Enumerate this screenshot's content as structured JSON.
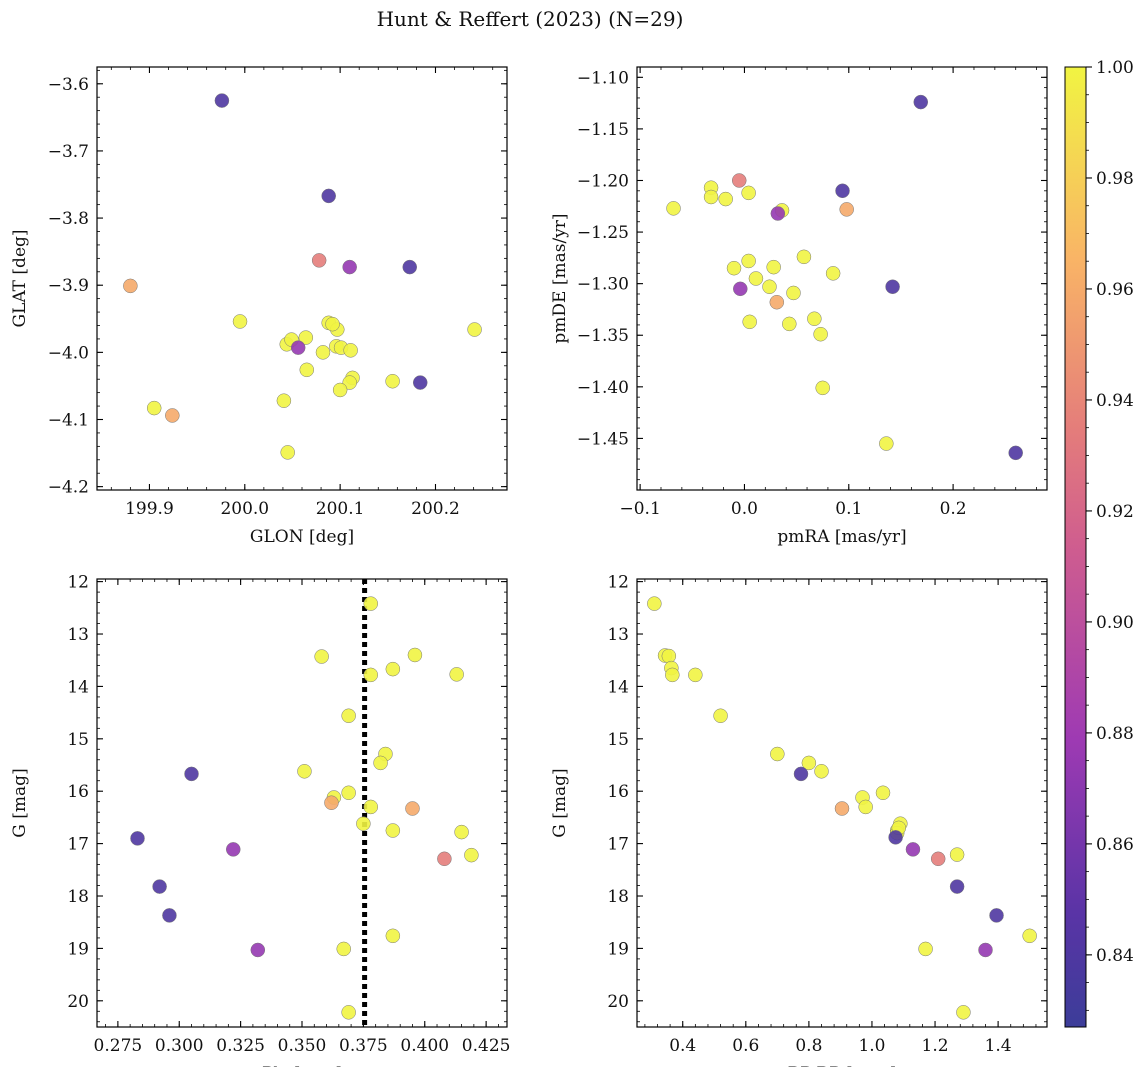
{
  "title": "Hunt & Reffert (2023) (N=29)",
  "colorbar": {
    "min": 0.827,
    "max": 1.0,
    "ticks": [
      0.84,
      0.86,
      0.88,
      0.9,
      0.92,
      0.94,
      0.96,
      0.98,
      1.0
    ],
    "tick_labels": [
      "0.84",
      "0.86",
      "0.88",
      "0.90",
      "0.92",
      "0.94",
      "0.96",
      "0.98",
      "1.00"
    ],
    "colormap": "plasma"
  },
  "chart_data": [
    {
      "type": "scatter",
      "id": "glon-glat",
      "xlabel": "GLON [deg]",
      "ylabel": "GLAT [deg]",
      "xlim": [
        199.845,
        200.275
      ],
      "ylim": [
        -4.205,
        -3.575
      ],
      "invert_y": false,
      "xticks": [
        199.9,
        200.0,
        200.1,
        200.2
      ],
      "xtick_labels": [
        "199.9",
        "200.0",
        "200.1",
        "200.2"
      ],
      "yticks": [
        -4.2,
        -4.1,
        -4.0,
        -3.9,
        -3.8,
        -3.7,
        -3.6
      ],
      "ytick_labels": [
        "−4.2",
        "−4.1",
        "−4.0",
        "−3.9",
        "−3.8",
        "−3.7",
        "−3.6"
      ],
      "x": [
        199.976,
        200.088,
        200.078,
        200.11,
        200.173,
        199.88,
        199.995,
        200.088,
        200.097,
        200.044,
        200.049,
        200.056,
        200.064,
        200.096,
        200.101,
        200.111,
        200.082,
        200.065,
        200.113,
        200.11,
        200.155,
        200.1,
        200.184,
        200.241,
        199.905,
        199.924,
        200.041,
        200.045,
        200.092
      ],
      "y": [
        -3.625,
        -3.767,
        -3.863,
        -3.873,
        -3.873,
        -3.901,
        -3.954,
        -3.956,
        -3.966,
        -3.988,
        -3.981,
        -3.993,
        -3.978,
        -3.991,
        -3.993,
        -3.997,
        -4.0,
        -4.026,
        -4.038,
        -4.045,
        -4.043,
        -4.056,
        -4.045,
        -3.966,
        -4.083,
        -4.094,
        -4.072,
        -4.149,
        -3.958
      ],
      "c": [
        0.84,
        0.84,
        0.935,
        0.875,
        0.84,
        0.96,
        1.0,
        1.0,
        1.0,
        1.0,
        1.0,
        0.875,
        1.0,
        1.0,
        1.0,
        1.0,
        1.0,
        1.0,
        1.0,
        1.0,
        1.0,
        1.0,
        0.84,
        1.0,
        1.0,
        0.96,
        1.0,
        1.0,
        1.0
      ]
    },
    {
      "type": "scatter",
      "id": "pmra-pmde",
      "xlabel": "pmRA [mas/yr]",
      "ylabel": "pmDE [mas/yr]",
      "xlim": [
        -0.103,
        0.29
      ],
      "ylim": [
        -1.5,
        -1.09
      ],
      "invert_y": false,
      "xticks": [
        -0.1,
        0.0,
        0.1,
        0.2
      ],
      "xtick_labels": [
        "−0.1",
        "0.0",
        "0.1",
        "0.2"
      ],
      "yticks": [
        -1.45,
        -1.4,
        -1.35,
        -1.3,
        -1.25,
        -1.2,
        -1.15,
        -1.1
      ],
      "ytick_labels": [
        "−1.45",
        "−1.40",
        "−1.35",
        "−1.30",
        "−1.25",
        "−1.20",
        "−1.15",
        "−1.10"
      ],
      "x": [
        0.169,
        0.094,
        -0.005,
        0.098,
        -0.032,
        -0.068,
        -0.032,
        0.004,
        -0.018,
        0.032,
        0.036,
        0.057,
        0.004,
        -0.01,
        0.028,
        0.085,
        0.011,
        0.024,
        0.047,
        -0.004,
        0.031,
        0.067,
        0.005,
        0.043,
        0.073,
        0.075,
        0.142,
        0.136,
        0.26
      ],
      "y": [
        -1.124,
        -1.21,
        -1.2,
        -1.228,
        -1.207,
        -1.227,
        -1.216,
        -1.212,
        -1.218,
        -1.232,
        -1.229,
        -1.274,
        -1.278,
        -1.285,
        -1.284,
        -1.29,
        -1.295,
        -1.303,
        -1.309,
        -1.305,
        -1.318,
        -1.334,
        -1.337,
        -1.339,
        -1.349,
        -1.401,
        -1.303,
        -1.455,
        -1.464
      ],
      "c": [
        0.84,
        0.84,
        0.935,
        0.96,
        1.0,
        1.0,
        1.0,
        1.0,
        1.0,
        0.875,
        1.0,
        1.0,
        1.0,
        1.0,
        1.0,
        1.0,
        1.0,
        1.0,
        1.0,
        0.875,
        0.96,
        1.0,
        1.0,
        1.0,
        1.0,
        1.0,
        0.84,
        1.0,
        0.84
      ]
    },
    {
      "type": "scatter",
      "id": "plx-g",
      "xlabel": "Plx [mas]",
      "ylabel": "G [mag]",
      "xlim": [
        0.2665,
        0.4335
      ],
      "ylim": [
        20.5,
        11.95
      ],
      "invert_y": true,
      "vline": {
        "x": 0.3755,
        "style": "dotted"
      },
      "xticks": [
        0.275,
        0.3,
        0.325,
        0.35,
        0.375,
        0.4,
        0.425
      ],
      "xtick_labels": [
        "0.275",
        "0.300",
        "0.325",
        "0.350",
        "0.375",
        "0.400",
        "0.425"
      ],
      "yticks": [
        12,
        13,
        14,
        15,
        16,
        17,
        18,
        19,
        20
      ],
      "ytick_labels": [
        "12",
        "13",
        "14",
        "15",
        "16",
        "17",
        "18",
        "19",
        "20"
      ],
      "x": [
        0.378,
        0.358,
        0.396,
        0.387,
        0.378,
        0.413,
        0.369,
        0.384,
        0.382,
        0.351,
        0.369,
        0.363,
        0.362,
        0.378,
        0.395,
        0.375,
        0.387,
        0.415,
        0.419,
        0.408,
        0.305,
        0.283,
        0.322,
        0.292,
        0.296,
        0.332,
        0.367,
        0.387,
        0.369
      ],
      "y": [
        12.42,
        13.43,
        13.4,
        13.67,
        13.78,
        13.77,
        14.56,
        15.29,
        15.46,
        15.62,
        16.03,
        16.12,
        16.22,
        16.3,
        16.33,
        16.62,
        16.75,
        16.78,
        17.22,
        17.29,
        15.67,
        16.9,
        17.11,
        17.82,
        18.37,
        19.03,
        19.01,
        18.76,
        20.22
      ],
      "c": [
        1.0,
        1.0,
        1.0,
        1.0,
        1.0,
        1.0,
        1.0,
        1.0,
        1.0,
        1.0,
        1.0,
        1.0,
        0.96,
        1.0,
        0.96,
        1.0,
        1.0,
        1.0,
        1.0,
        0.935,
        0.84,
        0.84,
        0.875,
        0.84,
        0.84,
        0.875,
        1.0,
        1.0,
        1.0
      ]
    },
    {
      "type": "scatter",
      "id": "bprp-g",
      "xlabel": "BP-RP [mag]",
      "ylabel": "G [mag]",
      "xlim": [
        0.255,
        1.555
      ],
      "ylim": [
        20.5,
        11.95
      ],
      "invert_y": true,
      "xticks": [
        0.4,
        0.6,
        0.8,
        1.0,
        1.2,
        1.4
      ],
      "xtick_labels": [
        "0.4",
        "0.6",
        "0.8",
        "1.0",
        "1.2",
        "1.4"
      ],
      "yticks": [
        12,
        13,
        14,
        15,
        16,
        17,
        18,
        19,
        20
      ],
      "ytick_labels": [
        "12",
        "13",
        "14",
        "15",
        "16",
        "17",
        "18",
        "19",
        "20"
      ],
      "x": [
        0.31,
        0.344,
        0.356,
        0.364,
        0.367,
        0.44,
        0.52,
        0.7,
        0.8,
        0.84,
        0.775,
        0.97,
        1.035,
        0.98,
        0.905,
        1.09,
        1.08,
        1.075,
        1.27,
        1.21,
        1.13,
        1.27,
        1.395,
        1.36,
        1.5,
        1.17,
        1.29,
        1.08,
        1.085
      ],
      "y": [
        12.42,
        13.41,
        13.42,
        13.65,
        13.78,
        13.78,
        14.56,
        15.29,
        15.46,
        15.62,
        15.67,
        16.12,
        16.03,
        16.3,
        16.33,
        16.62,
        16.75,
        16.88,
        17.21,
        17.29,
        17.11,
        17.82,
        18.37,
        19.03,
        18.76,
        19.01,
        20.22,
        16.8,
        16.7
      ],
      "c": [
        1.0,
        1.0,
        1.0,
        1.0,
        1.0,
        1.0,
        1.0,
        1.0,
        1.0,
        1.0,
        0.84,
        1.0,
        1.0,
        1.0,
        0.96,
        1.0,
        1.0,
        0.84,
        1.0,
        0.935,
        0.875,
        0.84,
        0.84,
        0.875,
        1.0,
        1.0,
        1.0,
        1.0,
        1.0
      ]
    }
  ]
}
